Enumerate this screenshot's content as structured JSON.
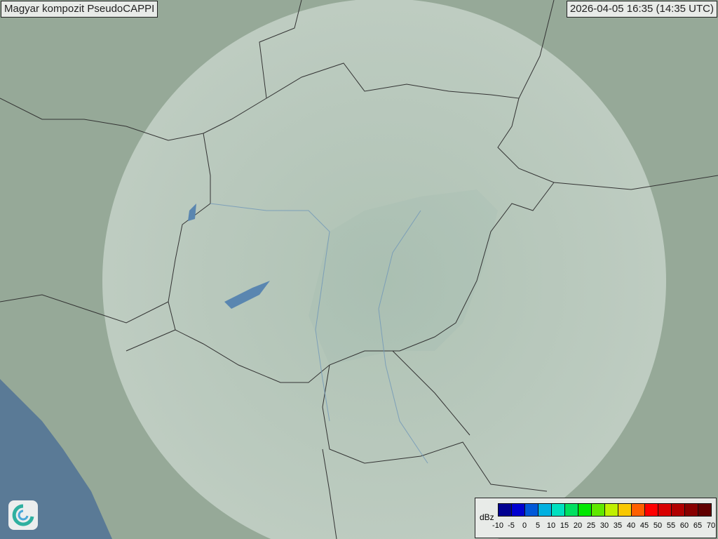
{
  "header": {
    "title": "Magyar kompozit  PseudoCAPPI",
    "timestamp": "2026-04-05 16:35 (14:35 UTC)"
  },
  "legend": {
    "unit": "dBz",
    "ticks": [
      "-10",
      "-5",
      "0",
      "5",
      "10",
      "15",
      "20",
      "25",
      "30",
      "35",
      "40",
      "45",
      "50",
      "55",
      "60",
      "65",
      "70"
    ],
    "colors": [
      "#000090",
      "#0000d0",
      "#0058d8",
      "#00b0e0",
      "#00e0c0",
      "#00e060",
      "#00e800",
      "#60e800",
      "#c0f000",
      "#f8c800",
      "#ff6000",
      "#ff0000",
      "#d80000",
      "#b00000",
      "#880000",
      "#600000"
    ]
  },
  "logo": {
    "icon": "met-service-swirl-logo"
  },
  "map": {
    "land_color": "#8fa596",
    "sea_color": "#5a7a96",
    "radar_coverage_color": "#d8e6e0"
  }
}
